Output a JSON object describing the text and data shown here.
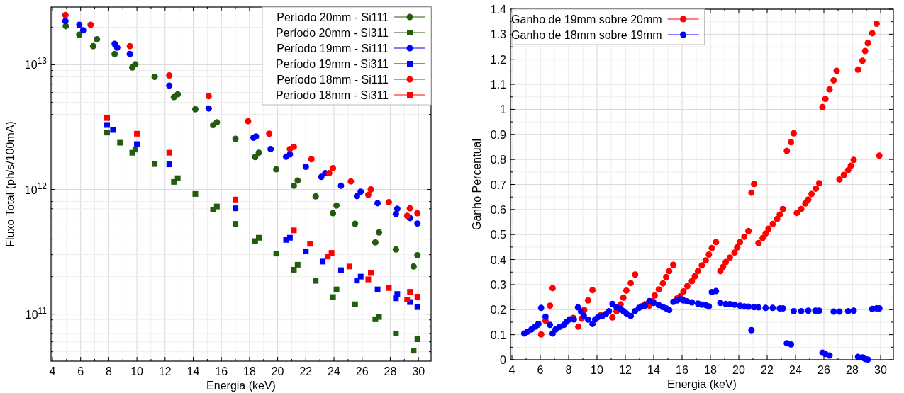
{
  "chart_data": [
    {
      "type": "scatter",
      "xlabel": "Energia (keV)",
      "ylabel": "Fluxo Total (ph/s/100mA)",
      "log": "y",
      "grid": true,
      "legend": "top right",
      "xlim": [
        3.9,
        30.9
      ],
      "ylim": [
        42000000000.0,
        29000000000000.0
      ],
      "xticks": [
        4,
        6,
        8,
        10,
        12,
        14,
        16,
        18,
        20,
        22,
        24,
        26,
        28,
        30,
        {
          "value": 5,
          "label": null
        },
        {
          "value": 7,
          "label": null
        },
        {
          "value": 9,
          "label": null
        },
        {
          "value": 11,
          "label": null
        },
        {
          "value": 13,
          "label": null
        },
        {
          "value": 15,
          "label": null
        },
        {
          "value": 17,
          "label": null
        },
        {
          "value": 19,
          "label": null
        },
        {
          "value": 21,
          "label": null
        },
        {
          "value": 23,
          "label": null
        },
        {
          "value": 25,
          "label": null
        },
        {
          "value": 27,
          "label": null
        },
        {
          "value": 29,
          "label": null
        }
      ],
      "yticks": [
        {
          "value": 100000000000.0,
          "label": "10$^{11}$"
        },
        {
          "value": 1000000000000.0,
          "label": "10$^{12}$"
        },
        {
          "value": 10000000000000.0,
          "label": "10$^{13}$"
        },
        {
          "value": 50000000000.0,
          "label": null
        },
        {
          "value": 60000000000.0,
          "label": null
        },
        {
          "value": 70000000000.0,
          "label": null
        },
        {
          "value": 80000000000.0,
          "label": null
        },
        {
          "value": 90000000000.0,
          "label": null
        },
        {
          "value": 200000000000.0,
          "label": null
        },
        {
          "value": 300000000000.0,
          "label": null
        },
        {
          "value": 400000000000.0,
          "label": null
        },
        {
          "value": 500000000000.0,
          "label": null
        },
        {
          "value": 600000000000.0,
          "label": null
        },
        {
          "value": 700000000000.0,
          "label": null
        },
        {
          "value": 800000000000.0,
          "label": null
        },
        {
          "value": 900000000000.0,
          "label": null
        },
        {
          "value": 2000000000000.0,
          "label": null
        },
        {
          "value": 3000000000000.0,
          "label": null
        },
        {
          "value": 4000000000000.0,
          "label": null
        },
        {
          "value": 5000000000000.0,
          "label": null
        },
        {
          "value": 6000000000000.0,
          "label": null
        },
        {
          "value": 7000000000000.0,
          "label": null
        },
        {
          "value": 8000000000000.0,
          "label": null
        },
        {
          "value": 9000000000000.0,
          "label": null
        },
        {
          "value": 20000000000000.0,
          "label": null
        }
      ],
      "series": [
        {
          "name": "Período 20mm - Si111",
          "color": "#225c0f",
          "marker": "circle",
          "x": [
            4.95,
            5.9,
            6.89,
            7.16,
            8.42,
            9.67,
            9.89,
            11.26,
            12.63,
            12.9,
            14.15,
            15.41,
            15.68,
            17.0,
            18.4,
            18.66,
            19.9,
            21.15,
            21.42,
            22.7,
            23.93,
            24.18,
            25.5,
            26.94,
            27.2,
            28.4,
            29.66,
            29.93
          ],
          "values": [
            20400000000000.0,
            17400000000000.0,
            14100000000000.0,
            16000000000000.0,
            12200000000000.0,
            9500000000000.0,
            10100000000000.0,
            8000000000000.0,
            5500000000000.0,
            5800000000000.0,
            4400000000000.0,
            3280000000000.0,
            3450000000000.0,
            2550000000000.0,
            1820000000000.0,
            1970000000000.0,
            1450000000000.0,
            1070000000000.0,
            1180000000000.0,
            880000000000.0,
            645000000000.0,
            744000000000.0,
            530000000000.0,
            376000000000.0,
            452000000000.0,
            330000000000.0,
            241000000000.0,
            297000000000.0
          ]
        },
        {
          "name": "Período 20mm - Si311",
          "color": "#225c0f",
          "marker": "square",
          "x": [
            7.88,
            8.8,
            9.67,
            9.89,
            11.26,
            12.63,
            12.9,
            14.15,
            15.41,
            15.68,
            17.0,
            18.4,
            18.66,
            19.9,
            21.15,
            21.42,
            22.7,
            23.93,
            24.18,
            25.5,
            26.94,
            27.2,
            28.4,
            29.66,
            29.93
          ],
          "values": [
            2860000000000.0,
            2370000000000.0,
            1970000000000.0,
            2090000000000.0,
            1600000000000.0,
            1150000000000.0,
            1230000000000.0,
            920000000000.0,
            690000000000.0,
            730000000000.0,
            530000000000.0,
            385000000000.0,
            410000000000.0,
            306000000000.0,
            227000000000.0,
            249000000000.0,
            185000000000.0,
            137000000000.0,
            158000000000.0,
            120000000000.0,
            91000000000.0,
            95000000000.0,
            70000000000.0,
            51000000000.0,
            63000000000.0
          ]
        },
        {
          "name": "Período 19mm - Si111",
          "color": "#0000ff",
          "marker": "circle",
          "x": [
            4.92,
            5.91,
            6.18,
            8.42,
            8.6,
            9.5,
            12.3,
            15.1,
            18.28,
            18.46,
            19.5,
            20.6,
            20.87,
            22.0,
            23.1,
            23.38,
            24.5,
            25.63,
            25.9,
            27.1,
            28.4,
            28.5,
            29.4,
            29.93
          ],
          "values": [
            22400000000000.0,
            20900000000000.0,
            18900000000000.0,
            14700000000000.0,
            13700000000000.0,
            12200000000000.0,
            6800000000000.0,
            4460000000000.0,
            2600000000000.0,
            2660000000000.0,
            2110000000000.0,
            1830000000000.0,
            1910000000000.0,
            1520000000000.0,
            1260000000000.0,
            1350000000000.0,
            1070000000000.0,
            885000000000.0,
            960000000000.0,
            776000000000.0,
            636000000000.0,
            700000000000.0,
            590000000000.0,
            533000000000.0
          ]
        },
        {
          "name": "Período 19mm - Si311",
          "color": "#0000ff",
          "marker": "square",
          "x": [
            7.88,
            8.3,
            10.0,
            12.3,
            17.0,
            20.6,
            20.87,
            22.0,
            23.2,
            24.5,
            25.63,
            25.9,
            27.1,
            28.4,
            28.5,
            29.4,
            29.93
          ],
          "values": [
            3290000000000.0,
            3000000000000.0,
            2310000000000.0,
            1590000000000.0,
            706000000000.0,
            394000000000.0,
            410000000000.0,
            319000000000.0,
            264000000000.0,
            225000000000.0,
            186000000000.0,
            200000000000.0,
            158000000000.0,
            134000000000.0,
            145000000000.0,
            125000000000.0,
            114000000000.0
          ]
        },
        {
          "name": "Período 18mm - Si111",
          "color": "#ff0000",
          "marker": "circle",
          "x": [
            4.92,
            6.71,
            9.5,
            12.3,
            15.1,
            17.9,
            19.4,
            20.87,
            21.15,
            22.4,
            23.66,
            23.93,
            25.2,
            26.44,
            26.62,
            27.9,
            29.2,
            29.4,
            29.93
          ],
          "values": [
            25000000000000.0,
            20900000000000.0,
            14100000000000.0,
            8200000000000.0,
            5600000000000.0,
            3530000000000.0,
            2800000000000.0,
            2110000000000.0,
            2200000000000.0,
            1750000000000.0,
            1350000000000.0,
            1480000000000.0,
            1160000000000.0,
            906000000000.0,
            1000000000000.0,
            790000000000.0,
            615000000000.0,
            706000000000.0,
            645000000000.0
          ]
        },
        {
          "name": "Período 18mm - Si311",
          "color": "#ff0000",
          "marker": "square",
          "x": [
            7.88,
            10.0,
            12.3,
            17.0,
            21.15,
            22.3,
            23.56,
            23.83,
            25.1,
            26.44,
            26.62,
            27.9,
            29.2,
            29.4,
            29.93
          ],
          "values": [
            3740000000000.0,
            2800000000000.0,
            1970000000000.0,
            830000000000.0,
            470000000000.0,
            367000000000.0,
            290000000000.0,
            310000000000.0,
            241000000000.0,
            190000000000.0,
            214000000000.0,
            162000000000.0,
            131000000000.0,
            151000000000.0,
            138000000000.0
          ]
        }
      ]
    },
    {
      "type": "scatter",
      "xlabel": "Energia (keV)",
      "ylabel": "Ganho Percentual",
      "grid": true,
      "legend": "top left",
      "marker": "circle",
      "xlim": [
        3.9,
        30.9
      ],
      "ylim": [
        0,
        1.4
      ],
      "xticks": [
        4,
        6,
        8,
        10,
        12,
        14,
        16,
        18,
        20,
        22,
        24,
        26,
        28,
        30,
        {
          "value": 5,
          "label": null
        },
        {
          "value": 7,
          "label": null
        },
        {
          "value": 9,
          "label": null
        },
        {
          "value": 11,
          "label": null
        },
        {
          "value": 13,
          "label": null
        },
        {
          "value": 15,
          "label": null
        },
        {
          "value": 17,
          "label": null
        },
        {
          "value": 19,
          "label": null
        },
        {
          "value": 21,
          "label": null
        },
        {
          "value": 23,
          "label": null
        },
        {
          "value": 25,
          "label": null
        },
        {
          "value": 27,
          "label": null
        },
        {
          "value": 29,
          "label": null
        }
      ],
      "yticks": [
        0,
        0.1,
        0.2,
        0.3,
        0.4,
        0.5,
        0.6,
        0.7,
        0.8,
        0.9,
        1,
        1.1,
        1.2,
        1.3,
        1.4,
        {
          "value": 0.05,
          "label": null
        },
        {
          "value": 0.15,
          "label": null
        },
        {
          "value": 0.25,
          "label": null
        },
        {
          "value": 0.35,
          "label": null
        },
        {
          "value": 0.45,
          "label": null
        },
        {
          "value": 0.55,
          "label": null
        },
        {
          "value": 0.65,
          "label": null
        },
        {
          "value": 0.75,
          "label": null
        },
        {
          "value": 0.85,
          "label": null
        },
        {
          "value": 0.95,
          "label": null
        },
        {
          "value": 1.05,
          "label": null
        },
        {
          "value": 1.15,
          "label": null
        },
        {
          "value": 1.25,
          "label": null
        },
        {
          "value": 1.35,
          "label": null
        }
      ],
      "series": [
        {
          "name": "Ganho de 19mm sobre 20mm",
          "color": "#ff0000",
          "x": [
            5.83,
            6.06,
            6.37,
            6.68,
            6.87,
            8.33,
            8.68,
            8.91,
            9.1,
            9.37,
            9.68,
            10.26,
            11.09,
            11.38,
            11.67,
            11.86,
            12.07,
            12.38,
            12.69,
            13.38,
            13.69,
            13.92,
            14.07,
            14.36,
            14.65,
            14.88,
            15.09,
            15.38,
            15.65,
            15.88,
            16.1,
            16.37,
            16.69,
            16.9,
            17.12,
            17.39,
            17.67,
            17.89,
            18.1,
            18.39,
            18.7,
            18.89,
            19.08,
            19.37,
            19.7,
            19.89,
            20.08,
            20.39,
            20.68,
            20.89,
            21.08,
            21.39,
            21.68,
            21.89,
            22.09,
            22.39,
            22.7,
            22.89,
            23.11,
            23.39,
            23.68,
            23.87,
            24.09,
            24.4,
            24.69,
            24.9,
            25.13,
            25.44,
            25.67,
            25.9,
            26.11,
            26.4,
            26.69,
            26.9,
            27.1,
            27.41,
            27.71,
            27.9,
            28.1,
            28.41,
            28.72,
            28.91,
            29.1,
            29.41,
            29.72,
            29.91
          ],
          "values": [
            0.139,
            0.101,
            0.156,
            0.216,
            0.286,
            0.167,
            0.132,
            0.164,
            0.199,
            0.237,
            0.278,
            0.178,
            0.169,
            0.194,
            0.221,
            0.248,
            0.276,
            0.306,
            0.34,
            0.221,
            0.216,
            0.235,
            0.257,
            0.281,
            0.305,
            0.33,
            0.354,
            0.379,
            0.245,
            0.254,
            0.273,
            0.294,
            0.314,
            0.333,
            0.354,
            0.377,
            0.397,
            0.42,
            0.446,
            0.47,
            0.354,
            0.371,
            0.39,
            0.408,
            0.428,
            0.449,
            0.47,
            0.491,
            0.514,
            0.667,
            0.702,
            0.466,
            0.486,
            0.504,
            0.523,
            0.542,
            0.562,
            0.58,
            0.602,
            0.834,
            0.869,
            0.904,
            0.586,
            0.602,
            0.624,
            0.64,
            0.662,
            0.683,
            0.705,
            1.009,
            1.042,
            1.08,
            1.116,
            1.154,
            0.72,
            0.738,
            0.757,
            0.775,
            0.798,
            1.159,
            1.194,
            1.233,
            1.265,
            1.304,
            1.342,
            0.815
          ]
        },
        {
          "name": "Ganho de 18mm sobre 19mm",
          "color": "#0000ff",
          "x": [
            4.87,
            5.1,
            5.37,
            5.64,
            5.87,
            6.06,
            6.37,
            6.68,
            6.87,
            7.08,
            7.37,
            7.66,
            7.87,
            8.06,
            8.37,
            8.66,
            8.87,
            9.07,
            9.37,
            9.68,
            9.87,
            10.07,
            10.36,
            10.64,
            10.84,
            11.09,
            11.38,
            11.67,
            11.86,
            12.07,
            12.38,
            12.67,
            12.96,
            13.15,
            13.38,
            13.69,
            14.0,
            14.36,
            14.65,
            14.88,
            15.09,
            15.38,
            15.65,
            15.88,
            16.1,
            16.37,
            16.69,
            17.12,
            17.39,
            17.67,
            17.89,
            18.1,
            18.39,
            18.7,
            19.08,
            19.37,
            19.7,
            20.08,
            20.39,
            20.68,
            20.89,
            21.08,
            21.39,
            21.89,
            22.39,
            22.89,
            23.11,
            23.39,
            23.68,
            23.87,
            24.4,
            24.9,
            25.4,
            25.67,
            25.9,
            26.11,
            26.4,
            26.69,
            27.1,
            27.71,
            28.1,
            28.41,
            28.72,
            28.91,
            29.1,
            29.41,
            29.72,
            29.91
          ],
          "values": [
            0.105,
            0.112,
            0.121,
            0.132,
            0.143,
            0.207,
            0.172,
            0.139,
            0.105,
            0.121,
            0.131,
            0.139,
            0.152,
            0.161,
            0.161,
            0.209,
            0.192,
            0.176,
            0.16,
            0.143,
            0.161,
            0.17,
            0.174,
            0.183,
            0.194,
            0.223,
            0.21,
            0.203,
            0.194,
            0.185,
            0.175,
            0.194,
            0.207,
            0.213,
            0.216,
            0.234,
            0.227,
            0.218,
            0.21,
            0.205,
            0.199,
            0.231,
            0.237,
            0.243,
            0.237,
            0.233,
            0.229,
            0.224,
            0.22,
            0.218,
            0.213,
            0.27,
            0.274,
            0.227,
            0.223,
            0.222,
            0.22,
            0.216,
            0.213,
            0.212,
            0.118,
            0.21,
            0.209,
            0.207,
            0.207,
            0.205,
            0.205,
            0.066,
            0.061,
            0.194,
            0.194,
            0.196,
            0.196,
            0.196,
            0.028,
            0.023,
            0.017,
            0.192,
            0.192,
            0.194,
            0.196,
            0.011,
            0.009,
            0.003,
            0.001,
            0.203,
            0.205,
            0.205
          ]
        }
      ]
    }
  ]
}
